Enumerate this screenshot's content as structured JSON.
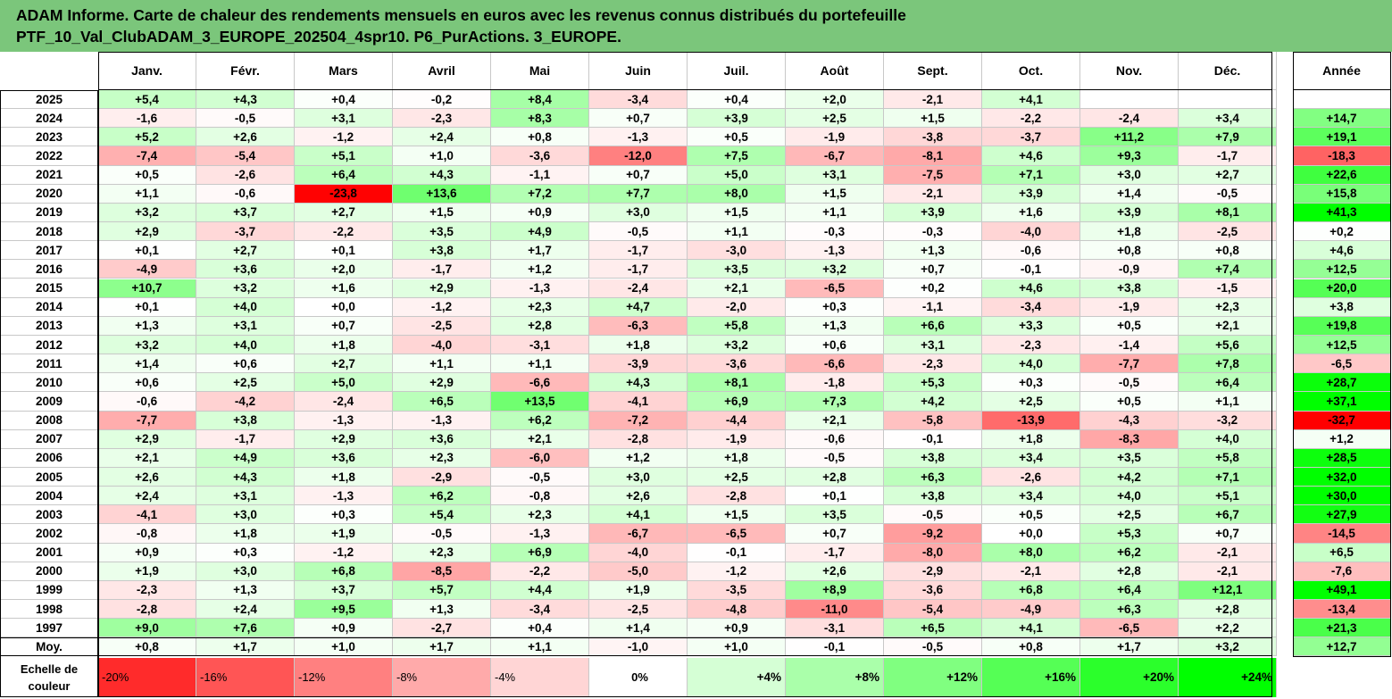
{
  "title_line1": "ADAM Informe. Carte de chaleur des rendements mensuels en euros avec les revenus connus distribués du portefeuille",
  "title_line2": "PTF_10_Val_ClubADAM_3_EUROPE_202504_4spr10. P6_PurActions. 3_EUROPE.",
  "chart_data": {
    "type": "heatmap",
    "columns": [
      "Janv.",
      "Févr.",
      "Mars",
      "Avril",
      "Mai",
      "Juin",
      "Juil.",
      "Août",
      "Sept.",
      "Oct.",
      "Nov.",
      "Déc."
    ],
    "year_column": "Année",
    "rows": [
      {
        "label": "2025",
        "values": [
          "+5,4",
          "+4,3",
          "+0,4",
          "-0,2",
          "+8,4",
          "-3,4",
          "+0,4",
          "+2,0",
          "-2,1",
          "+4,1",
          "",
          ""
        ],
        "annee": ""
      },
      {
        "label": "2024",
        "values": [
          "-1,6",
          "-0,5",
          "+3,1",
          "-2,3",
          "+8,3",
          "+0,7",
          "+3,9",
          "+2,5",
          "+1,5",
          "-2,2",
          "-2,4",
          "+3,4"
        ],
        "annee": "+14,7"
      },
      {
        "label": "2023",
        "values": [
          "+5,2",
          "+2,6",
          "-1,2",
          "+2,4",
          "+0,8",
          "-1,3",
          "+0,5",
          "-1,9",
          "-3,8",
          "-3,7",
          "+11,2",
          "+7,9"
        ],
        "annee": "+19,1"
      },
      {
        "label": "2022",
        "values": [
          "-7,4",
          "-5,4",
          "+5,1",
          "+1,0",
          "-3,6",
          "-12,0",
          "+7,5",
          "-6,7",
          "-8,1",
          "+4,6",
          "+9,3",
          "-1,7"
        ],
        "annee": "-18,3"
      },
      {
        "label": "2021",
        "values": [
          "+0,5",
          "-2,6",
          "+6,4",
          "+4,3",
          "-1,1",
          "+0,7",
          "+5,0",
          "+3,1",
          "-7,5",
          "+7,1",
          "+3,0",
          "+2,7"
        ],
        "annee": "+22,6"
      },
      {
        "label": "2020",
        "values": [
          "+1,1",
          "-0,6",
          "-23,8",
          "+13,6",
          "+7,2",
          "+7,7",
          "+8,0",
          "+1,5",
          "-2,1",
          "+3,9",
          "+1,4",
          "-0,5"
        ],
        "annee": "+15,8"
      },
      {
        "label": "2019",
        "values": [
          "+3,2",
          "+3,7",
          "+2,7",
          "+1,5",
          "+0,9",
          "+3,0",
          "+1,5",
          "+1,1",
          "+3,9",
          "+1,6",
          "+3,9",
          "+8,1"
        ],
        "annee": "+41,3"
      },
      {
        "label": "2018",
        "values": [
          "+2,9",
          "-3,7",
          "-2,2",
          "+3,5",
          "+4,9",
          "-0,5",
          "+1,1",
          "-0,3",
          "-0,3",
          "-4,0",
          "+1,8",
          "-2,5"
        ],
        "annee": "+0,2"
      },
      {
        "label": "2017",
        "values": [
          "+0,1",
          "+2,7",
          "+0,1",
          "+3,8",
          "+1,7",
          "-1,7",
          "-3,0",
          "-1,3",
          "+1,3",
          "-0,6",
          "+0,8",
          "+0,8"
        ],
        "annee": "+4,6"
      },
      {
        "label": "2016",
        "values": [
          "-4,9",
          "+3,6",
          "+2,0",
          "-1,7",
          "+1,2",
          "-1,7",
          "+3,5",
          "+3,2",
          "+0,7",
          "-0,1",
          "-0,9",
          "+7,4"
        ],
        "annee": "+12,5"
      },
      {
        "label": "2015",
        "values": [
          "+10,7",
          "+3,2",
          "+1,6",
          "+2,9",
          "-1,3",
          "-2,4",
          "+2,1",
          "-6,5",
          "+0,2",
          "+4,6",
          "+3,8",
          "-1,5"
        ],
        "annee": "+20,0"
      },
      {
        "label": "2014",
        "values": [
          "+0,1",
          "+4,0",
          "+0,0",
          "-1,2",
          "+2,3",
          "+4,7",
          "-2,0",
          "+0,3",
          "-1,1",
          "-3,4",
          "-1,9",
          "+2,3"
        ],
        "annee": "+3,8"
      },
      {
        "label": "2013",
        "values": [
          "+1,3",
          "+3,1",
          "+0,7",
          "-2,5",
          "+2,8",
          "-6,3",
          "+5,8",
          "+1,3",
          "+6,6",
          "+3,3",
          "+0,5",
          "+2,1"
        ],
        "annee": "+19,8"
      },
      {
        "label": "2012",
        "values": [
          "+3,2",
          "+4,0",
          "+1,8",
          "-4,0",
          "-3,1",
          "+1,8",
          "+3,2",
          "+0,6",
          "+3,1",
          "-2,3",
          "-1,4",
          "+5,6"
        ],
        "annee": "+12,5"
      },
      {
        "label": "2011",
        "values": [
          "+1,4",
          "+0,6",
          "+2,7",
          "+1,1",
          "+1,1",
          "-3,9",
          "-3,6",
          "-6,6",
          "-2,3",
          "+4,0",
          "-7,7",
          "+7,8"
        ],
        "annee": "-6,5"
      },
      {
        "label": "2010",
        "values": [
          "+0,6",
          "+2,5",
          "+5,0",
          "+2,9",
          "-6,6",
          "+4,3",
          "+8,1",
          "-1,8",
          "+5,3",
          "+0,3",
          "-0,5",
          "+6,4"
        ],
        "annee": "+28,7"
      },
      {
        "label": "2009",
        "values": [
          "-0,6",
          "-4,2",
          "-2,4",
          "+6,5",
          "+13,5",
          "-4,1",
          "+6,9",
          "+7,3",
          "+4,2",
          "+2,5",
          "+0,5",
          "+1,1"
        ],
        "annee": "+37,1"
      },
      {
        "label": "2008",
        "values": [
          "-7,7",
          "+3,8",
          "-1,3",
          "-1,3",
          "+6,2",
          "-7,2",
          "-4,4",
          "+2,1",
          "-5,8",
          "-13,9",
          "-4,3",
          "-3,2"
        ],
        "annee": "-32,7"
      },
      {
        "label": "2007",
        "values": [
          "+2,9",
          "-1,7",
          "+2,9",
          "+3,6",
          "+2,1",
          "-2,8",
          "-1,9",
          "-0,6",
          "-0,1",
          "+1,8",
          "-8,3",
          "+4,0"
        ],
        "annee": "+1,2"
      },
      {
        "label": "2006",
        "values": [
          "+2,1",
          "+4,9",
          "+3,6",
          "+2,3",
          "-6,0",
          "+1,2",
          "+1,8",
          "-0,5",
          "+3,8",
          "+3,4",
          "+3,5",
          "+5,8"
        ],
        "annee": "+28,5"
      },
      {
        "label": "2005",
        "values": [
          "+2,6",
          "+4,3",
          "+1,8",
          "-2,9",
          "-0,5",
          "+3,0",
          "+2,5",
          "+2,8",
          "+6,3",
          "-2,6",
          "+4,2",
          "+7,1"
        ],
        "annee": "+32,0"
      },
      {
        "label": "2004",
        "values": [
          "+2,4",
          "+3,1",
          "-1,3",
          "+6,2",
          "-0,8",
          "+2,6",
          "-2,8",
          "+0,1",
          "+3,8",
          "+3,4",
          "+4,0",
          "+5,1"
        ],
        "annee": "+30,0"
      },
      {
        "label": "2003",
        "values": [
          "-4,1",
          "+3,0",
          "+0,3",
          "+5,4",
          "+2,3",
          "+4,1",
          "+1,5",
          "+3,5",
          "-0,5",
          "+0,5",
          "+2,5",
          "+6,7"
        ],
        "annee": "+27,9"
      },
      {
        "label": "2002",
        "values": [
          "-0,8",
          "+1,8",
          "+1,9",
          "-0,5",
          "-1,3",
          "-6,7",
          "-6,5",
          "+0,7",
          "-9,2",
          "+0,0",
          "+5,3",
          "+0,7"
        ],
        "annee": "-14,5"
      },
      {
        "label": "2001",
        "values": [
          "+0,9",
          "+0,3",
          "-1,2",
          "+2,3",
          "+6,9",
          "-4,0",
          "-0,1",
          "-1,7",
          "-8,0",
          "+8,0",
          "+6,2",
          "-2,1"
        ],
        "annee": "+6,5"
      },
      {
        "label": "2000",
        "values": [
          "+1,9",
          "+3,0",
          "+6,8",
          "-8,5",
          "-2,2",
          "-5,0",
          "-1,2",
          "+2,6",
          "-2,9",
          "-2,1",
          "+2,8",
          "-2,1"
        ],
        "annee": "-7,6"
      },
      {
        "label": "1999",
        "values": [
          "-2,3",
          "+1,3",
          "+3,7",
          "+5,7",
          "+4,4",
          "+1,9",
          "-3,5",
          "+8,9",
          "-3,6",
          "+6,8",
          "+6,4",
          "+12,1"
        ],
        "annee": "+49,1"
      },
      {
        "label": "1998",
        "values": [
          "-2,8",
          "+2,4",
          "+9,5",
          "+1,3",
          "-3,4",
          "-2,5",
          "-4,8",
          "-11,0",
          "-5,4",
          "-4,9",
          "+6,3",
          "+2,8"
        ],
        "annee": "-13,4"
      },
      {
        "label": "1997",
        "values": [
          "+9,0",
          "+7,6",
          "+0,9",
          "-2,7",
          "+0,4",
          "+1,4",
          "+0,9",
          "-3,1",
          "+6,5",
          "+4,1",
          "-6,5",
          "+2,2"
        ],
        "annee": "+21,3"
      },
      {
        "label": "Moy.",
        "values": [
          "+0,8",
          "+1,7",
          "+1,0",
          "+1,7",
          "+1,1",
          "-1,0",
          "+1,0",
          "-0,1",
          "-0,5",
          "+0,8",
          "+1,7",
          "+3,2"
        ],
        "annee": "+12,7"
      }
    ],
    "scale_label_line1": "Echelle de",
    "scale_label_line2": "couleur",
    "scale": [
      "-20%",
      "-16%",
      "-12%",
      "-8%",
      "-4%",
      "0%",
      "+4%",
      "+8%",
      "+12%",
      "+16%",
      "+20%",
      "+24%"
    ]
  }
}
